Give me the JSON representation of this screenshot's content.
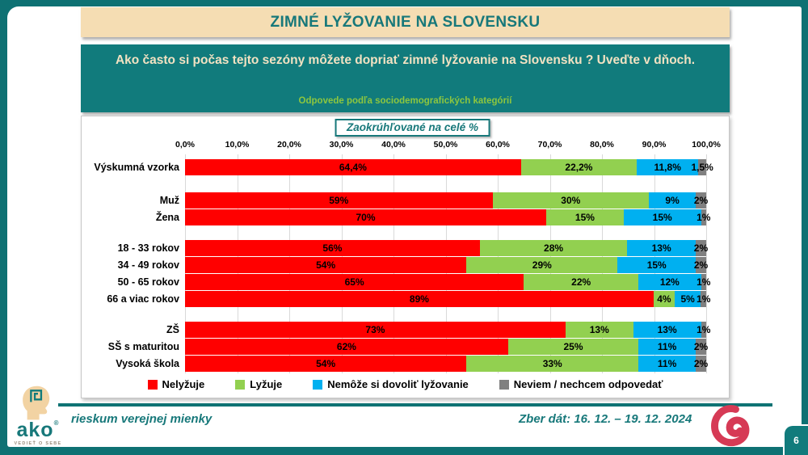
{
  "slide": {
    "title": "ZIMNÉ LYŽOVANIE NA SLOVENSKU",
    "page_number": "6"
  },
  "question": {
    "text": "Ako často si počas tejto sezóny  môžete dopriať zimné lyžovanie na Slovensku ? Uveďte v dňoch.",
    "subtitle": "Odpovede podľa sociodemografických kategórií"
  },
  "rounding_note": "Zaokrúhľované na celé %",
  "footer": {
    "tagline": "rieskum verejnej mienky",
    "collection_dates": "Zber dát: 16. 12. – 19. 12. 2024",
    "logo_name": "ako",
    "logo_registered": "®",
    "logo_subtext": "VEDIEŤ O SEBE"
  },
  "colors": {
    "frame_teal": "#0E7173",
    "box_teal": "#117B7C",
    "title_cream": "#F5DDB3",
    "cream_text": "#F2E2C2",
    "subtitle_green": "#8DC63F",
    "spiral_red": "#D63A55",
    "series": [
      "#FF0000",
      "#92D050",
      "#00B0F0",
      "#808080"
    ]
  },
  "chart_data": {
    "type": "bar",
    "stacked": true,
    "orientation": "horizontal",
    "unit": "%",
    "xlim": [
      0,
      100
    ],
    "grid": true,
    "legend_position": "bottom",
    "x_ticks": [
      "0,0%",
      "10,0%",
      "20,0%",
      "30,0%",
      "40,0%",
      "50,0%",
      "60,0%",
      "70,0%",
      "80,0%",
      "90,0%",
      "100,0%"
    ],
    "series_names": [
      "Nelyžuje",
      "Lyžuje",
      "Nemôže si dovoliť lyžovanie",
      "Neviem / nechcem odpovedať"
    ],
    "series_colors": [
      "#FF0000",
      "#92D050",
      "#00B0F0",
      "#808080"
    ],
    "categories": [
      "Výskumná vzorka",
      "Muž",
      "Žena",
      "18 - 33 rokov",
      "34 - 49 rokov",
      "50 - 65 rokov",
      "66 a viac rokov",
      "ZŠ",
      "SŠ s maturitou",
      "Vysoká škola"
    ],
    "groups": [
      [
        0
      ],
      [
        1,
        2
      ],
      [
        3,
        4,
        5,
        6
      ],
      [
        7,
        8,
        9
      ]
    ],
    "rows": [
      {
        "category": "Výskumná vzorka",
        "values": [
          64.4,
          22.2,
          11.8,
          1.5
        ],
        "labels": [
          "64,4%",
          "22,2%",
          "11,8%",
          "1,5%"
        ]
      },
      {
        "category": "Muž",
        "values": [
          59,
          30,
          9,
          2
        ],
        "labels": [
          "59%",
          "30%",
          "9%",
          "2%"
        ]
      },
      {
        "category": "Žena",
        "values": [
          70,
          15,
          15,
          1
        ],
        "labels": [
          "70%",
          "15%",
          "15%",
          "1%"
        ]
      },
      {
        "category": "18 - 33 rokov",
        "values": [
          56,
          28,
          13,
          2
        ],
        "labels": [
          "56%",
          "28%",
          "13%",
          "2%"
        ]
      },
      {
        "category": "34 - 49 rokov",
        "values": [
          54,
          29,
          15,
          2
        ],
        "labels": [
          "54%",
          "29%",
          "15%",
          "2%"
        ]
      },
      {
        "category": "50 - 65 rokov",
        "values": [
          65,
          22,
          12,
          1
        ],
        "labels": [
          "65%",
          "22%",
          "12%",
          "1%"
        ]
      },
      {
        "category": "66 a viac rokov",
        "values": [
          89,
          4,
          5,
          1
        ],
        "labels": [
          "89%",
          "4%",
          "5%",
          "1%"
        ]
      },
      {
        "category": "ZŠ",
        "values": [
          73,
          13,
          13,
          1
        ],
        "labels": [
          "73%",
          "13%",
          "13%",
          "1%"
        ]
      },
      {
        "category": "SŠ s maturitou",
        "values": [
          62,
          25,
          11,
          2
        ],
        "labels": [
          "62%",
          "25%",
          "11%",
          "2%"
        ]
      },
      {
        "category": "Vysoká škola",
        "values": [
          54,
          33,
          11,
          2
        ],
        "labels": [
          "54%",
          "33%",
          "11%",
          "2%"
        ]
      }
    ]
  }
}
